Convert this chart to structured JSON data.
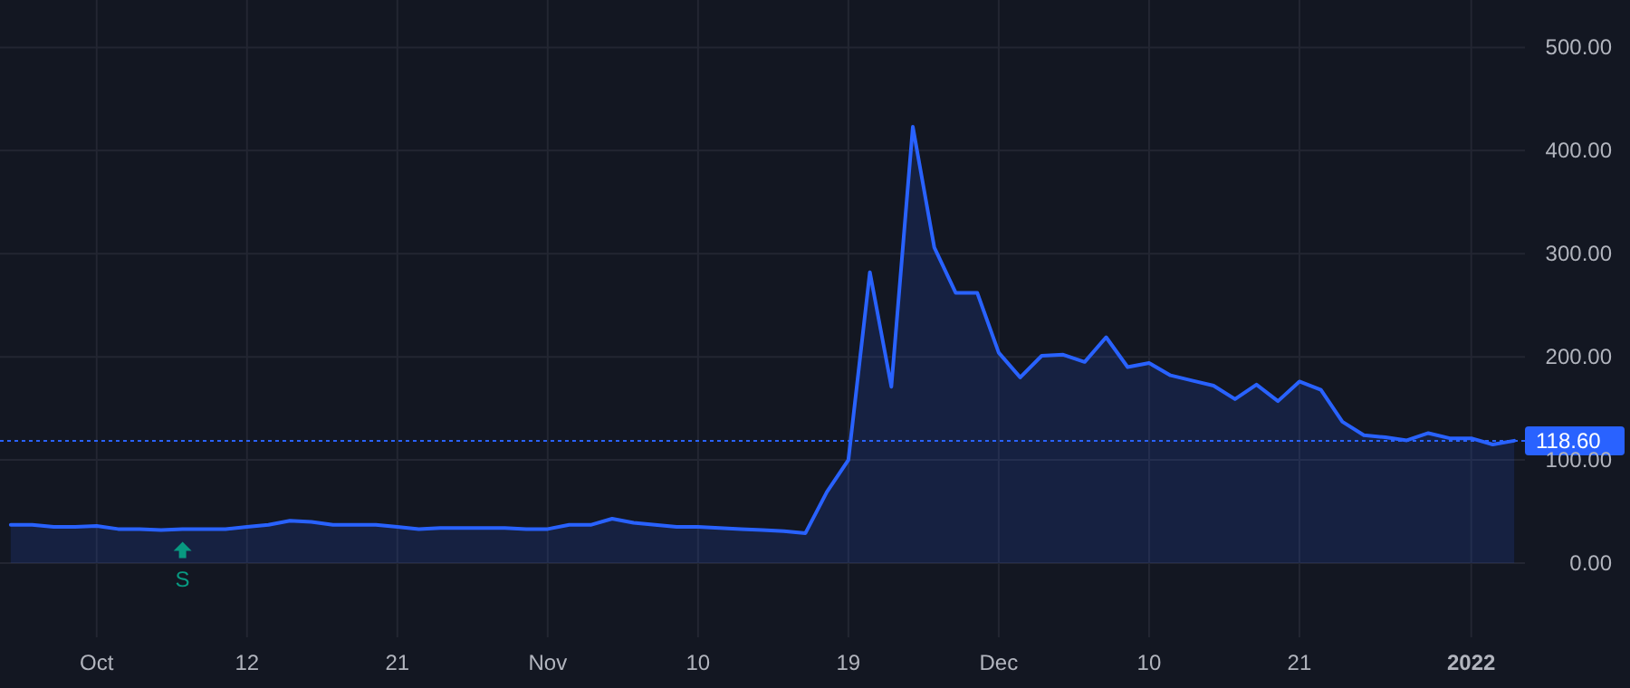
{
  "chart_data": {
    "type": "area",
    "categories": [
      null,
      null,
      null,
      null,
      "Oct",
      null,
      null,
      null,
      null,
      null,
      null,
      "12",
      null,
      null,
      null,
      null,
      null,
      null,
      "21",
      null,
      null,
      null,
      null,
      null,
      null,
      "Nov",
      null,
      null,
      null,
      null,
      null,
      null,
      "10",
      null,
      null,
      null,
      null,
      null,
      null,
      "19",
      null,
      null,
      null,
      null,
      null,
      null,
      "Dec",
      null,
      null,
      null,
      null,
      null,
      null,
      "10",
      null,
      null,
      null,
      null,
      null,
      null,
      "21",
      null,
      null,
      null,
      null,
      null,
      null,
      null,
      "2022",
      null,
      null
    ],
    "series": [
      {
        "color": "#2962ff",
        "values": [
          37,
          37,
          35,
          35,
          36,
          33,
          33,
          32,
          33,
          33,
          33,
          35,
          37,
          41,
          40,
          37,
          37,
          37,
          35,
          33,
          34,
          34,
          34,
          34,
          33,
          33,
          37,
          37,
          43,
          39,
          37,
          35,
          35,
          34,
          33,
          32,
          31,
          29,
          69,
          100,
          282,
          171,
          423,
          306,
          262,
          262,
          204,
          180,
          201,
          202,
          195,
          219,
          190,
          194,
          182,
          177,
          172,
          159,
          173,
          157,
          176,
          168,
          137,
          124,
          122,
          119,
          126,
          121,
          121,
          115,
          118.6
        ]
      }
    ],
    "ylim": [
      -72,
      546
    ],
    "yticks": [
      {
        "value": 0,
        "label": "0.00"
      },
      {
        "value": 100,
        "label": "100.00"
      },
      {
        "value": 200,
        "label": "200.00"
      },
      {
        "value": 300,
        "label": "300.00"
      },
      {
        "value": 400,
        "label": "400.00"
      },
      {
        "value": 500,
        "label": "500.00"
      }
    ],
    "grid": true,
    "marker": "none",
    "line_style": "solid",
    "ref_lines": [
      {
        "axis": "y",
        "value": 118.6,
        "label": "118.60",
        "color": "#2962ff",
        "line_style": "dotted"
      }
    ],
    "annotations": [
      "S"
    ]
  }
}
